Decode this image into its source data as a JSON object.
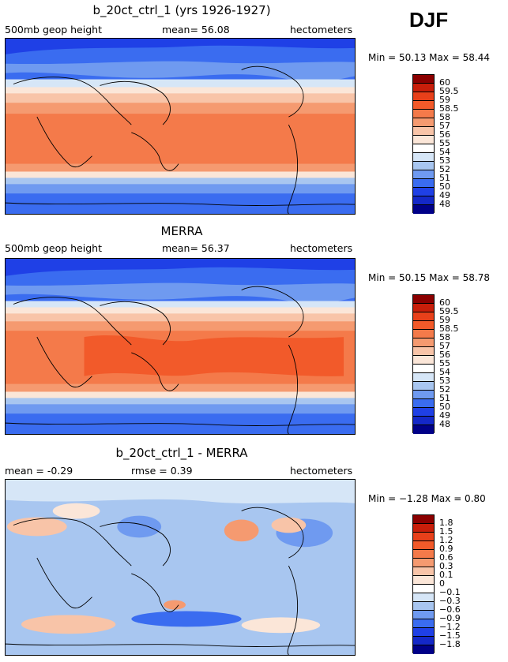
{
  "season": "DJF",
  "panels": [
    {
      "title": "b_20ct_ctrl_1 (yrs 1926-1927)",
      "left_label": "500mb geop height",
      "mid_label": "mean= 56.08",
      "right_label": "hectometers",
      "minmax": "Min = 50.13 Max = 58.44",
      "colorbar_labels": [
        "60",
        "59.5",
        "59",
        "58.5",
        "58",
        "57",
        "56",
        "55",
        "54",
        "53",
        "52",
        "51",
        "50",
        "49",
        "48"
      ],
      "colorbar_colors": [
        "#8b0000",
        "#c81e0a",
        "#e8401a",
        "#f25a2a",
        "#f47a4a",
        "#f59a70",
        "#f8c4a8",
        "#fbe6d8",
        "#ffffff",
        "#d6e6f7",
        "#a8c6f0",
        "#6f9af0",
        "#3a6cf0",
        "#1f40e6",
        "#1428c8",
        "#000088"
      ]
    },
    {
      "title": "MERRA",
      "left_label": "500mb geop height",
      "mid_label": "mean= 56.37",
      "right_label": "hectometers",
      "minmax": "Min = 50.15 Max = 58.78",
      "colorbar_labels": [
        "60",
        "59.5",
        "59",
        "58.5",
        "58",
        "57",
        "56",
        "55",
        "54",
        "53",
        "52",
        "51",
        "50",
        "49",
        "48"
      ],
      "colorbar_colors": [
        "#8b0000",
        "#c81e0a",
        "#e8401a",
        "#f25a2a",
        "#f47a4a",
        "#f59a70",
        "#f8c4a8",
        "#fbe6d8",
        "#ffffff",
        "#d6e6f7",
        "#a8c6f0",
        "#6f9af0",
        "#3a6cf0",
        "#1f40e6",
        "#1428c8",
        "#000088"
      ]
    },
    {
      "title": "b_20ct_ctrl_1 - MERRA",
      "left_label": "mean = -0.29",
      "mid_label": "rmse = 0.39",
      "right_label": "hectometers",
      "minmax": "Min = −1.28 Max = 0.80",
      "colorbar_labels": [
        "1.8",
        "1.5",
        "1.2",
        "0.9",
        "0.6",
        "0.3",
        "0.1",
        "0",
        "−0.1",
        "−0.3",
        "−0.6",
        "−0.9",
        "−1.2",
        "−1.5",
        "−1.8"
      ],
      "colorbar_colors": [
        "#8b0000",
        "#c81e0a",
        "#e8401a",
        "#f25a2a",
        "#f47a4a",
        "#f59a70",
        "#f8c4a8",
        "#fbe6d8",
        "#ffffff",
        "#d6e6f7",
        "#a8c6f0",
        "#6f9af0",
        "#3a6cf0",
        "#1f40e6",
        "#1428c8",
        "#000088"
      ]
    }
  ]
}
